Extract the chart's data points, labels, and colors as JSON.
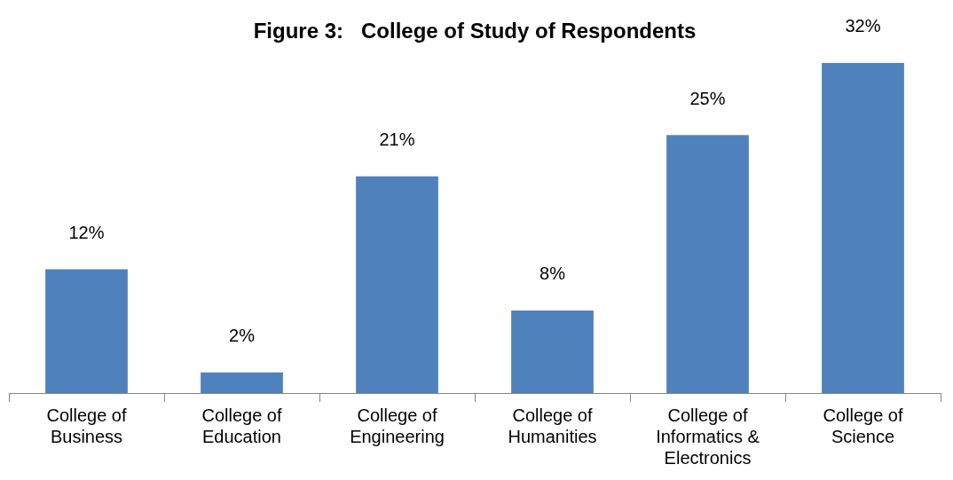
{
  "chart_data": {
    "type": "bar",
    "title": "Figure 3:   College of Study of Respondents",
    "categories": [
      "College of Business",
      "College of Education",
      "College of Engineering",
      "College of Humanities",
      "College of Informatics & Electronics",
      "College of Science"
    ],
    "values": [
      12,
      2,
      21,
      8,
      25,
      32
    ],
    "value_labels": [
      "12%",
      "2%",
      "21%",
      "8%",
      "25%",
      "32%"
    ],
    "color": "#4f81bd",
    "ylim": [
      0,
      32
    ],
    "tick_labels": "x"
  }
}
